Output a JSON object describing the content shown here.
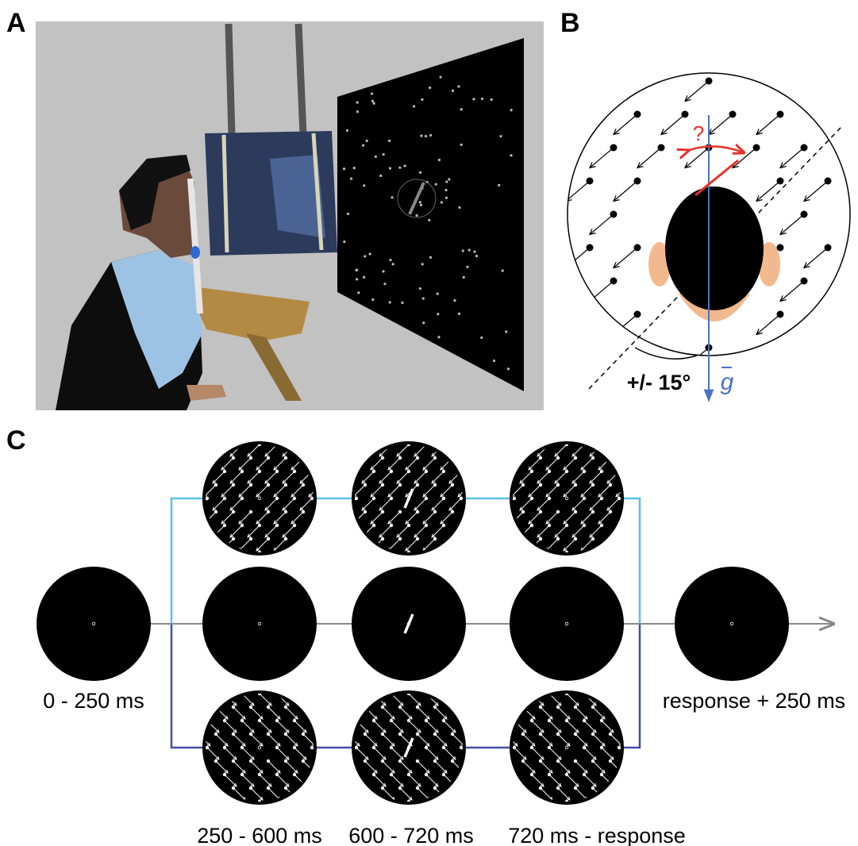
{
  "panels": {
    "a": {
      "label": "A"
    },
    "b": {
      "label": "B",
      "question": "?",
      "angle": "+/- 15°",
      "gravity": "g"
    },
    "c": {
      "label": "C",
      "times": [
        "0 - 250 ms",
        "250 - 600 ms",
        "600 - 720 ms",
        "720 ms - response",
        "response + 250 ms"
      ]
    }
  }
}
